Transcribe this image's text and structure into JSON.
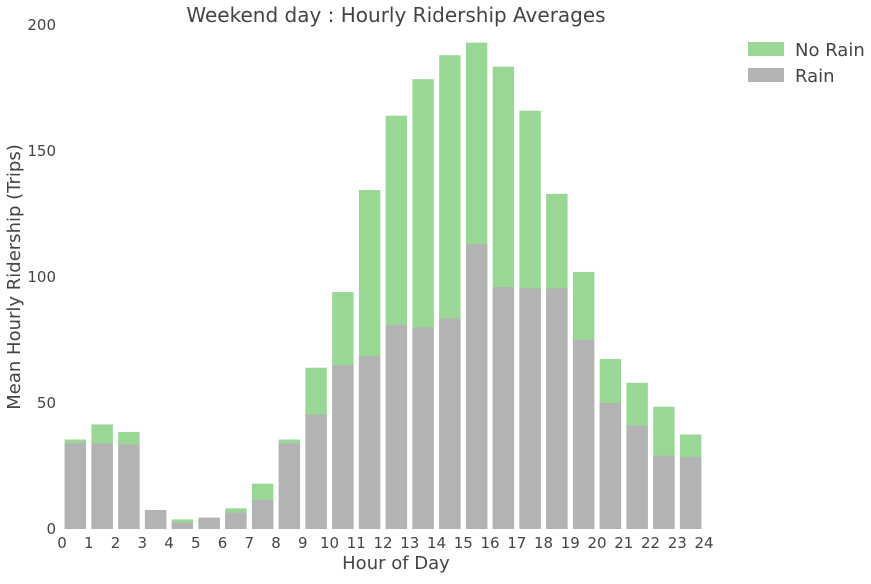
{
  "chart_data": {
    "type": "bar",
    "title": "Weekend day : Hourly Ridership Averages",
    "xlabel": "Hour of Day",
    "ylabel": "Mean Hourly Ridership (Trips)",
    "xlim": [
      0,
      24
    ],
    "ylim": [
      0,
      200
    ],
    "xticks": [
      "0",
      "1",
      "2",
      "3",
      "4",
      "5",
      "6",
      "7",
      "8",
      "9",
      "10",
      "11",
      "12",
      "13",
      "14",
      "15",
      "16",
      "17",
      "18",
      "19",
      "20",
      "21",
      "22",
      "23",
      "24"
    ],
    "yticks": [
      "0",
      "50",
      "100",
      "150",
      "200"
    ],
    "grid": false,
    "legend_position": "outside-top-right",
    "bar_mode": "overlay",
    "categories": [
      0,
      1,
      2,
      3,
      4,
      5,
      6,
      7,
      8,
      9,
      10,
      11,
      12,
      13,
      14,
      15,
      16,
      17,
      18,
      19,
      20,
      21,
      22,
      23
    ],
    "series": [
      {
        "name": "No Rain",
        "color": "#98d794",
        "values": [
          35.5,
          41.5,
          38.5,
          7.5,
          3.8,
          4.5,
          8.2,
          18.0,
          35.5,
          64.0,
          94.0,
          134.5,
          164.0,
          178.5,
          188.0,
          193.0,
          183.5,
          166.0,
          133.0,
          102.0,
          67.5,
          58.0,
          48.5,
          37.5
        ]
      },
      {
        "name": "Rain",
        "color": "#b3b3b3",
        "values": [
          34.0,
          34.0,
          33.5,
          7.5,
          2.5,
          4.5,
          6.5,
          11.5,
          34.0,
          45.5,
          65.0,
          68.5,
          81.0,
          80.0,
          83.5,
          113.0,
          96.0,
          95.5,
          95.5,
          75.0,
          50.0,
          41.0,
          29.0,
          28.5
        ]
      }
    ]
  }
}
